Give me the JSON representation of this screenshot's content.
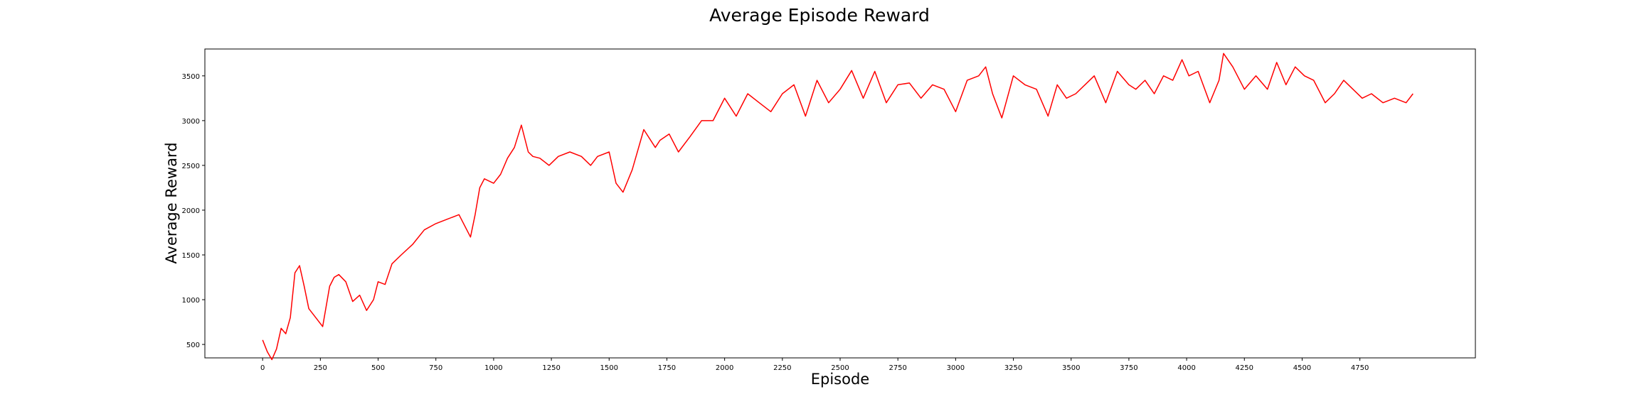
{
  "chart_data": {
    "type": "line",
    "title": "Average Episode Reward",
    "xlabel": "Episode",
    "ylabel": "Average Reward",
    "xlim": [
      -250,
      5250
    ],
    "ylim": [
      350,
      3800
    ],
    "xticks": [
      0,
      250,
      500,
      750,
      1000,
      1250,
      1500,
      1750,
      2000,
      2250,
      2500,
      2750,
      3000,
      3250,
      3500,
      3750,
      4000,
      4250,
      4500,
      4750
    ],
    "xtick_labels": [
      "0",
      "250",
      "500",
      "750",
      "1000",
      "1250",
      "1500",
      "1750",
      "2000",
      "2250",
      "2500",
      "2750",
      "3000",
      "3250",
      "3500",
      "3750",
      "4000",
      "4250",
      "4500",
      "4750"
    ],
    "yticks": [
      500,
      1000,
      1500,
      2000,
      2500,
      3000,
      3500
    ],
    "ytick_labels": [
      "500",
      "1000",
      "1500",
      "2000",
      "2500",
      "3000",
      "3500"
    ],
    "grid": false,
    "legend": false,
    "series": [
      {
        "color": "#ff0000",
        "x": [
          0,
          20,
          40,
          60,
          80,
          100,
          120,
          140,
          160,
          180,
          200,
          230,
          260,
          290,
          310,
          330,
          360,
          390,
          420,
          450,
          480,
          500,
          530,
          560,
          600,
          650,
          700,
          750,
          800,
          850,
          900,
          920,
          940,
          960,
          1000,
          1030,
          1060,
          1090,
          1120,
          1150,
          1170,
          1200,
          1240,
          1280,
          1330,
          1380,
          1420,
          1450,
          1500,
          1530,
          1560,
          1600,
          1650,
          1700,
          1720,
          1760,
          1800,
          1850,
          1900,
          1950,
          2000,
          2050,
          2100,
          2150,
          2200,
          2250,
          2300,
          2350,
          2400,
          2450,
          2500,
          2550,
          2600,
          2650,
          2700,
          2750,
          2800,
          2850,
          2900,
          2950,
          3000,
          3050,
          3100,
          3130,
          3160,
          3200,
          3250,
          3300,
          3350,
          3400,
          3440,
          3480,
          3520,
          3560,
          3600,
          3650,
          3700,
          3750,
          3780,
          3820,
          3860,
          3900,
          3940,
          3980,
          4010,
          4050,
          4100,
          4140,
          4160,
          4200,
          4250,
          4300,
          4350,
          4390,
          4430,
          4470,
          4510,
          4550,
          4600,
          4640,
          4680,
          4720,
          4760,
          4800,
          4850,
          4900,
          4950,
          4980
        ],
        "values": [
          550,
          420,
          330,
          450,
          680,
          620,
          800,
          1300,
          1380,
          1150,
          900,
          800,
          700,
          1150,
          1250,
          1280,
          1200,
          980,
          1050,
          880,
          1000,
          1200,
          1170,
          1400,
          1500,
          1620,
          1780,
          1850,
          1900,
          1950,
          1700,
          1950,
          2250,
          2350,
          2300,
          2400,
          2580,
          2700,
          2950,
          2650,
          2600,
          2580,
          2500,
          2600,
          2650,
          2600,
          2500,
          2600,
          2650,
          2300,
          2200,
          2450,
          2900,
          2700,
          2780,
          2850,
          2650,
          2820,
          3000,
          3000,
          3250,
          3050,
          3300,
          3200,
          3100,
          3300,
          3400,
          3050,
          3450,
          3200,
          3350,
          3560,
          3250,
          3550,
          3200,
          3400,
          3420,
          3250,
          3400,
          3350,
          3100,
          3450,
          3500,
          3600,
          3300,
          3030,
          3500,
          3400,
          3350,
          3050,
          3400,
          3250,
          3300,
          3400,
          3500,
          3200,
          3550,
          3400,
          3350,
          3450,
          3300,
          3500,
          3450,
          3680,
          3500,
          3550,
          3200,
          3450,
          3750,
          3600,
          3350,
          3500,
          3350,
          3650,
          3400,
          3600,
          3500,
          3450,
          3200,
          3300,
          3450,
          3350,
          3250,
          3300,
          3200,
          3250,
          3200,
          3300
        ]
      }
    ]
  }
}
